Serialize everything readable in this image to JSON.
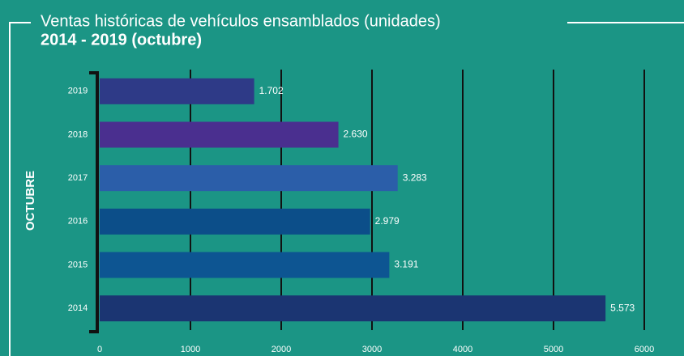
{
  "chart_data": {
    "type": "bar",
    "orientation": "horizontal",
    "title": "Ventas históricas de vehículos ensamblados (unidades)",
    "subtitle": "2014 - 2019 (octubre)",
    "y_label": "OCTUBRE",
    "categories": [
      "2019",
      "2018",
      "2017",
      "2016",
      "2015",
      "2014"
    ],
    "values": [
      1702,
      2630,
      3283,
      2979,
      3191,
      5573
    ],
    "value_labels": [
      "1.702",
      "2.630",
      "3.283",
      "2.979",
      "3.191",
      "5.573"
    ],
    "colors": [
      "#2e3a87",
      "#4a2f8f",
      "#2b5ea9",
      "#0c4e89",
      "#0d5592",
      "#1b3572"
    ],
    "xlim": [
      0,
      6000
    ],
    "xticks": [
      0,
      1000,
      2000,
      3000,
      4000,
      5000,
      6000
    ],
    "grid": true
  }
}
